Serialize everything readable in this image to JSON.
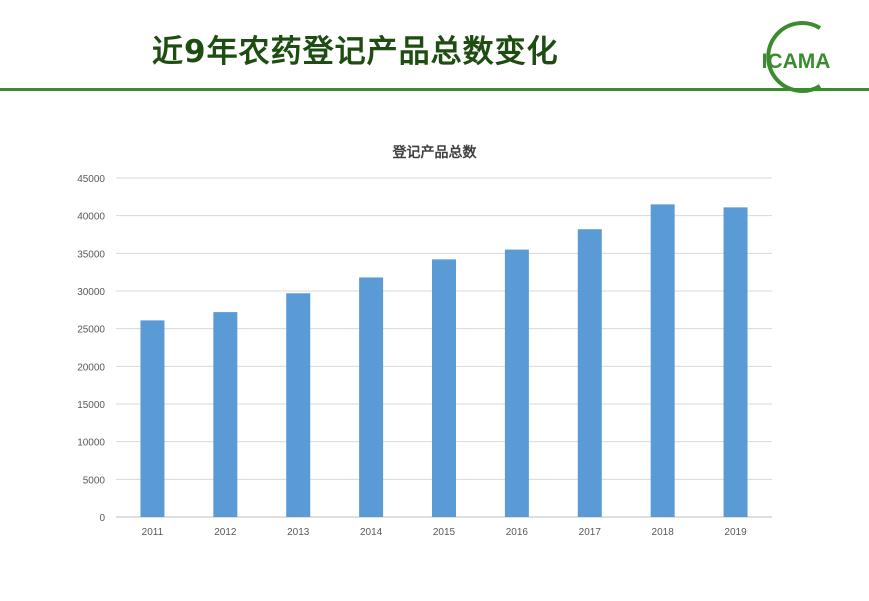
{
  "slide": {
    "title": "近9年农药登记产品总数变化",
    "logo_text": "ICAMA",
    "accent_color": "#3a8c2e",
    "title_color": "#1e4d12"
  },
  "chart_data": {
    "type": "bar",
    "title": "登记产品总数",
    "categories": [
      "2011",
      "2012",
      "2013",
      "2014",
      "2015",
      "2016",
      "2017",
      "2018",
      "2019"
    ],
    "values": [
      26100,
      27200,
      29700,
      31800,
      34200,
      35500,
      38200,
      41500,
      41100
    ],
    "ylim": [
      0,
      45000
    ],
    "yticks": [
      "0",
      "5000",
      "10000",
      "15000",
      "20000",
      "25000",
      "30000",
      "35000",
      "40000",
      "45000"
    ],
    "grid": true,
    "bar_color": "#5b9bd5",
    "xlabel": "",
    "ylabel": ""
  }
}
